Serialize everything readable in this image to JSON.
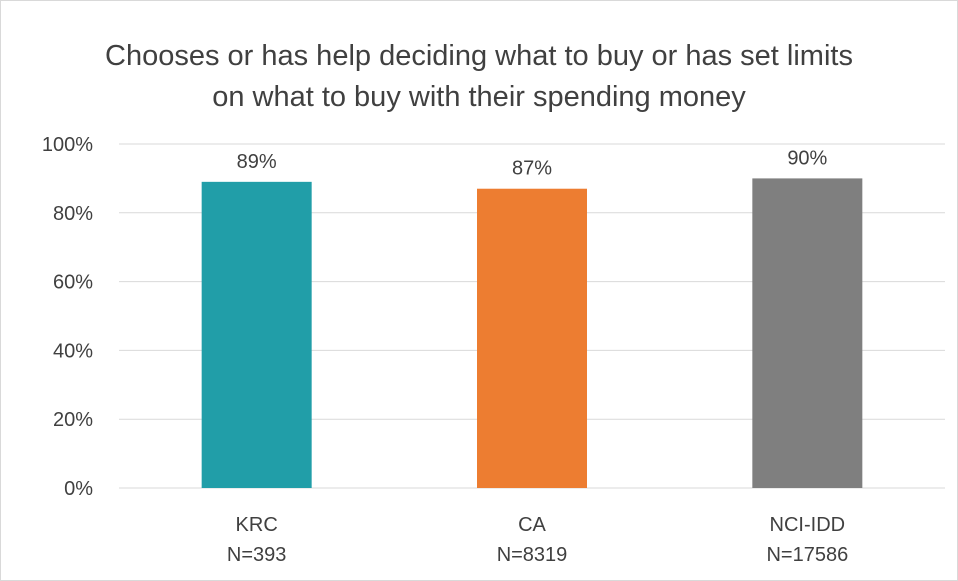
{
  "chart_data": {
    "type": "bar",
    "title": "Chooses or has help deciding what to buy or has set limits on what to buy with their spending money",
    "title_lines": [
      "Chooses or has help deciding what to buy or has set limits",
      "on what to buy with their spending money"
    ],
    "categories": [
      "KRC",
      "CA",
      "NCI-IDD"
    ],
    "category_sublabels": [
      "N=393",
      "N=8319",
      "N=17586"
    ],
    "values": [
      89,
      87,
      90
    ],
    "data_labels": [
      "89%",
      "87%",
      "90%"
    ],
    "colors": [
      "#219ea8",
      "#ed7d31",
      "#7f7f7f"
    ],
    "ylim": [
      0,
      100
    ],
    "yticks": [
      0,
      20,
      40,
      60,
      80,
      100
    ],
    "ytick_labels": [
      "0%",
      "20%",
      "40%",
      "60%",
      "80%",
      "100%"
    ],
    "grid": true,
    "grid_color": "#d9d9d9",
    "legend": "none",
    "xlabel": "",
    "ylabel": ""
  }
}
